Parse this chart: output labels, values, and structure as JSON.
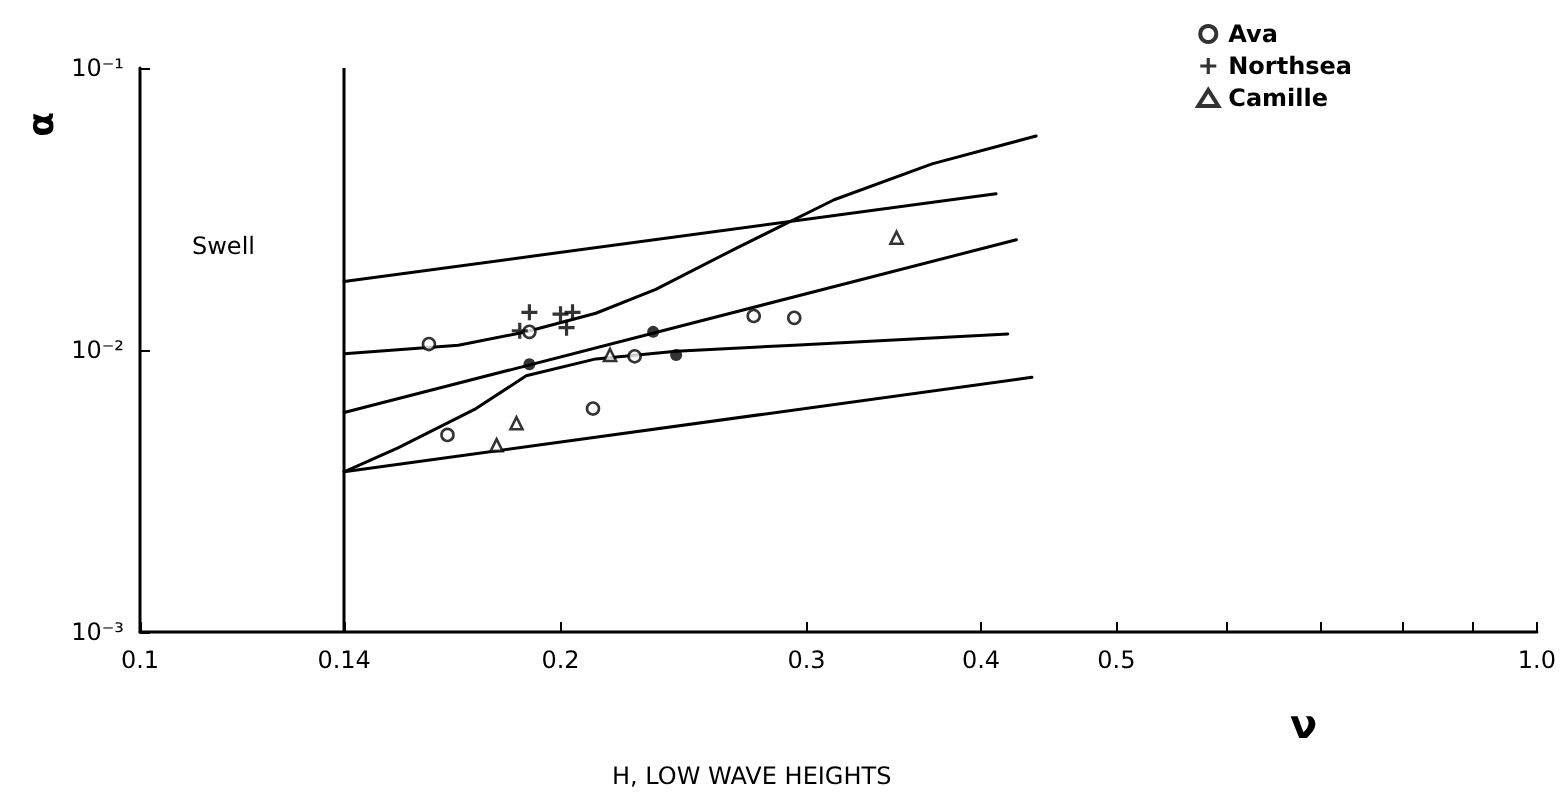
{
  "chart_data": {
    "type": "scatter",
    "xlabel": "ν",
    "ylabel": "α",
    "annotations": [
      "Swell",
      "H, LOW WAVE HEIGHTS"
    ],
    "log": "xy",
    "grid": false,
    "legend": "top right",
    "xlim": [
      0.1,
      1
    ],
    "xticks": [
      0.1,
      0.14,
      0.2,
      0.3,
      0.4,
      0.5,
      {
        "value": 0.6,
        "label": null
      },
      {
        "value": 0.7,
        "label": null
      },
      {
        "value": 0.8,
        "label": null
      },
      {
        "value": 0.9,
        "label": null
      },
      {
        "value": 1,
        "label": "1.0"
      }
    ],
    "ylim": [
      0.001,
      0.1
    ],
    "yticks": [
      {
        "value": 0.001,
        "label": "10⁻³"
      },
      {
        "value": 0.01,
        "label": "10⁻²"
      },
      {
        "value": 0.1,
        "label": "10⁻¹"
      }
    ],
    "ref_lines": [
      {
        "axis": "x",
        "value": 0.14,
        "color": "#000000"
      }
    ],
    "series": [
      {
        "name": "Ava",
        "marker": "circle",
        "color": "#000000",
        "x": [
          0.161,
          0.166,
          0.19,
          0.211,
          0.226,
          0.275,
          0.294
        ],
        "values": [
          0.0105,
          0.005,
          0.0116,
          0.0062,
          0.0095,
          0.0132,
          0.013
        ]
      },
      {
        "name": "Northsea",
        "marker": "cross",
        "color": "#000000",
        "x": [
          0.19,
          0.187,
          0.2,
          0.204,
          0.202
        ],
        "values": [
          0.0136,
          0.0117,
          0.0134,
          0.0136,
          0.012
        ]
      },
      {
        "name": "Camille",
        "marker": "triangle",
        "color": "#000000",
        "x": [
          0.18,
          0.186,
          0.217,
          0.348
        ],
        "values": [
          0.0046,
          0.0055,
          0.0096,
          0.025
        ]
      },
      {
        "marker": "circle",
        "color": "#000000",
        "x": [
          0.19,
          0.233,
          0.242
        ],
        "values": [
          0.0089,
          0.0116,
          0.0096
        ]
      },
      {
        "type": "line",
        "marker": "none",
        "color": "#000000",
        "x": [
          0.14,
          0.41
        ],
        "values": [
          0.0175,
          0.0358
        ]
      },
      {
        "type": "line",
        "marker": "none",
        "color": "#000000",
        "x": [
          0.14,
          0.424
        ],
        "values": [
          0.006,
          0.0246
        ]
      },
      {
        "type": "line",
        "marker": "none",
        "color": "#000000",
        "x": [
          0.14,
          0.435
        ],
        "values": [
          0.0037,
          0.008
        ]
      },
      {
        "type": "line",
        "marker": "none",
        "color": "#000000",
        "x": [
          0.14,
          0.169,
          0.189,
          0.212,
          0.234,
          0.266,
          0.314,
          0.369,
          0.438
        ],
        "values": [
          0.0097,
          0.0104,
          0.0116,
          0.0135,
          0.0164,
          0.0227,
          0.0341,
          0.0457,
          0.0574
        ]
      },
      {
        "type": "line",
        "marker": "none",
        "color": "#000000",
        "x": [
          0.14,
          0.153,
          0.174,
          0.189,
          0.212,
          0.242,
          0.294,
          0.418
        ],
        "values": [
          0.0037,
          0.0045,
          0.0062,
          0.0081,
          0.0093,
          0.0099,
          0.0104,
          0.0114
        ]
      }
    ]
  }
}
